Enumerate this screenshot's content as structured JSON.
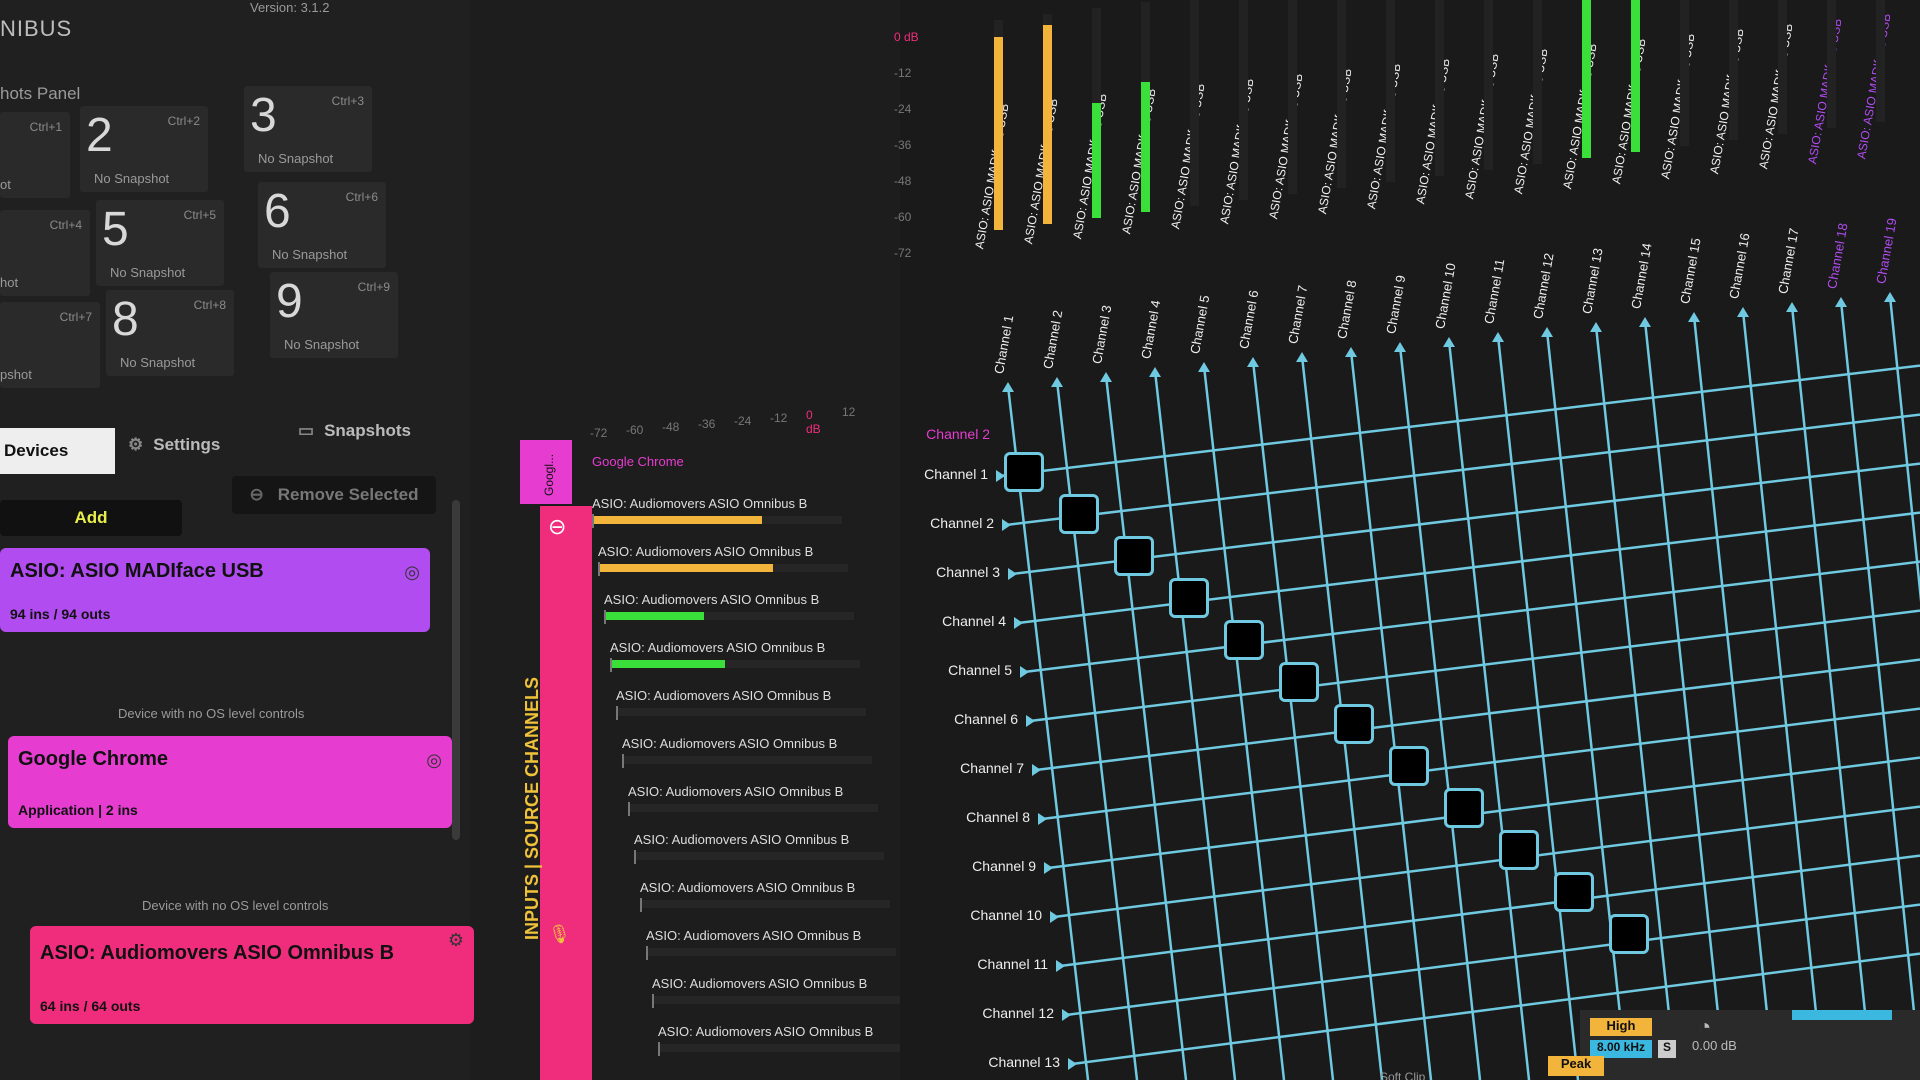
{
  "app": {
    "brand": "NIBUS",
    "version": "Version: 3.1.2"
  },
  "snapshots_panel": {
    "title": "hots Panel",
    "items": [
      {
        "num": "2",
        "key": "Ctrl+2",
        "status": "No Snapshot"
      },
      {
        "num": "3",
        "key": "Ctrl+3",
        "status": "No Snapshot"
      },
      {
        "num": "5",
        "key": "Ctrl+5",
        "status": "No Snapshot"
      },
      {
        "num": "6",
        "key": "Ctrl+6",
        "status": "No Snapshot"
      },
      {
        "num": "8",
        "key": "Ctrl+8",
        "status": "No Snapshot"
      },
      {
        "num": "9",
        "key": "Ctrl+9",
        "status": "No Snapshot"
      },
      {
        "num": "",
        "key": "Ctrl+1",
        "status": "ot"
      },
      {
        "num": "",
        "key": "Ctrl+4",
        "status": "hot"
      },
      {
        "num": "",
        "key": "Ctrl+7",
        "status": "pshot"
      }
    ]
  },
  "tabs": {
    "devices": "Devices",
    "settings": "Settings",
    "snapshots": "Snapshots"
  },
  "actions": {
    "add": "Add",
    "remove": "Remove Selected"
  },
  "devices": [
    {
      "name": "ASIO: ASIO MADIface USB",
      "sub": "94 ins / 94 outs",
      "color": "#b04cf0",
      "note": "Device with no OS level controls"
    },
    {
      "name": "Google Chrome",
      "sub": "Application | 2 ins",
      "color": "#e63cd0",
      "note": "Device with no OS level controls"
    },
    {
      "name": "ASIO: Audiomovers ASIO Omnibus B",
      "sub": "64 ins / 64 outs",
      "color": "#f02d7c",
      "note": ""
    }
  ],
  "strip": {
    "top_label": "Googl...",
    "label": "INPUTS | SOURCE CHANNELS"
  },
  "meter_scale": {
    "ticks": [
      "-72",
      "-60",
      "-48",
      "-36",
      "-24",
      "-12",
      "0 dB",
      "12"
    ]
  },
  "source_header": "Google Chrome",
  "source_rows": [
    {
      "label": "ASIO: Audiomovers ASIO Omnibus B",
      "level": 0.68,
      "color": "#f2b43a"
    },
    {
      "label": "ASIO: Audiomovers ASIO Omnibus B",
      "level": 0.7,
      "color": "#f2b43a"
    },
    {
      "label": "ASIO: Audiomovers ASIO Omnibus B",
      "level": 0.4,
      "color": "#3adf3a"
    },
    {
      "label": "ASIO: Audiomovers ASIO Omnibus B",
      "level": 0.46,
      "color": "#3adf3a"
    },
    {
      "label": "ASIO: Audiomovers ASIO Omnibus B",
      "level": 0,
      "color": "#3adf3a"
    },
    {
      "label": "ASIO: Audiomovers ASIO Omnibus B",
      "level": 0,
      "color": "#3adf3a"
    },
    {
      "label": "ASIO: Audiomovers ASIO Omnibus B",
      "level": 0,
      "color": "#3adf3a"
    },
    {
      "label": "ASIO: Audiomovers ASIO Omnibus B",
      "level": 0,
      "color": "#3adf3a"
    },
    {
      "label": "ASIO: Audiomovers ASIO Omnibus B",
      "level": 0,
      "color": "#3adf3a"
    },
    {
      "label": "ASIO: Audiomovers ASIO Omnibus B",
      "level": 0,
      "color": "#3adf3a"
    },
    {
      "label": "ASIO: Audiomovers ASIO Omnibus B",
      "level": 0,
      "color": "#3adf3a"
    },
    {
      "label": "ASIO: Audiomovers ASIO Omnibus B",
      "level": 0,
      "color": "#3adf3a"
    }
  ],
  "matrix": {
    "row_header": "Channel 2",
    "rows": [
      "Channel 1",
      "Channel 2",
      "Channel 3",
      "Channel 4",
      "Channel 5",
      "Channel 6",
      "Channel 7",
      "Channel 8",
      "Channel 9",
      "Channel 10",
      "Channel 11",
      "Channel 12",
      "Channel 13"
    ],
    "cols": [
      "Channel 1",
      "Channel 2",
      "Channel 3",
      "Channel 4",
      "Channel 5",
      "Channel 6",
      "Channel 7",
      "Channel 8",
      "Channel 9",
      "Channel 10",
      "Channel 11",
      "Channel 12",
      "Channel 13",
      "Channel 14",
      "Channel 15",
      "Channel 16",
      "Channel 17",
      "Channel 18",
      "Channel 19"
    ],
    "col_device": "ASIO: ASIO MADIface USB",
    "col_levels": [
      0.92,
      0.95,
      0.55,
      0.62,
      0,
      0,
      0,
      0,
      0,
      0,
      0,
      0,
      0.9,
      0.88,
      0,
      0,
      0,
      0,
      0
    ],
    "col_colors": [
      "#f2b43a",
      "#f2b43a",
      "#3adf3a",
      "#3adf3a",
      "#3adf3a",
      "#3adf3a",
      "#3adf3a",
      "#3adf3a",
      "#3adf3a",
      "#3adf3a",
      "#3adf3a",
      "#3adf3a",
      "#3adf3a",
      "#3adf3a",
      "#3adf3a",
      "#3adf3a",
      "#3adf3a",
      "#3adf3a",
      "#3adf3a"
    ],
    "db_scale": [
      "0 dB",
      "-12",
      "-24",
      "-36",
      "-48",
      "-60",
      "-72"
    ],
    "grid_color": "#6fc9e0",
    "accent_purple": "#b04cf0"
  },
  "bottom": {
    "high": "High",
    "freq": "8.00 kHz",
    "solo": "S",
    "gain": "0.00 dB",
    "peak": "Peak",
    "softclip": "Soft Clip"
  }
}
